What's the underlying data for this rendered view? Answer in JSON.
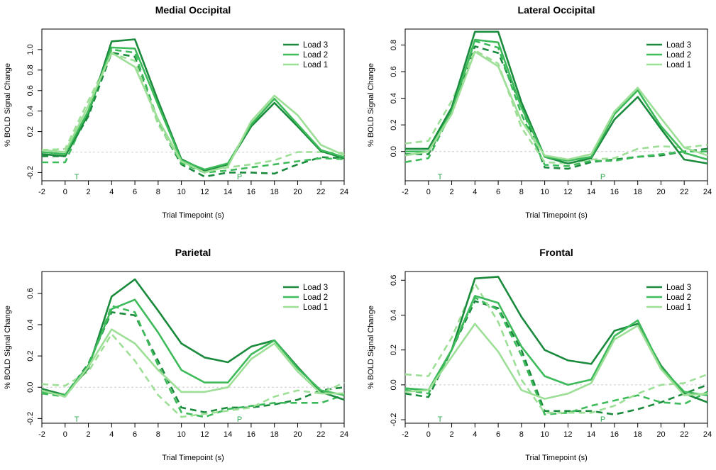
{
  "figure": {
    "background": "#ffffff"
  },
  "colors": {
    "Load 3": "#1a8a3c",
    "Load 2": "#3dba5a",
    "Load 1": "#9ddf97",
    "baseline": "#cccccc",
    "marker": "#2fa84f"
  },
  "markers": {
    "T": 1,
    "P": 15
  },
  "chart_data": [
    {
      "type": "line",
      "title": "Medial Occipital",
      "xlabel": "Trial Timepoint (s)",
      "ylabel": "% BOLD Signal Change",
      "xlim": [
        -2,
        24
      ],
      "ylim": [
        -0.28,
        1.2
      ],
      "yticks": [
        -0.2,
        0.2,
        0.4,
        0.6,
        0.8,
        1.0
      ],
      "ytick_labels": [
        "-0.2",
        "0.2",
        "0.4",
        "0.6",
        "0.8",
        "1.0"
      ],
      "xticks": [
        -2,
        0,
        2,
        4,
        6,
        8,
        10,
        12,
        14,
        16,
        18,
        20,
        22,
        24
      ],
      "x": [
        -2,
        0,
        2,
        4,
        6,
        8,
        10,
        12,
        14,
        16,
        18,
        20,
        22,
        24
      ],
      "legend_position": "top-right",
      "series": [
        {
          "name": "Load 3",
          "style": "solid",
          "values": [
            -0.02,
            -0.04,
            0.37,
            1.08,
            1.1,
            0.5,
            -0.07,
            -0.18,
            -0.12,
            0.25,
            0.48,
            0.25,
            0.01,
            -0.06
          ]
        },
        {
          "name": "Load 2",
          "style": "solid",
          "values": [
            0.0,
            -0.02,
            0.4,
            1.02,
            1.01,
            0.46,
            -0.08,
            -0.17,
            -0.11,
            0.27,
            0.52,
            0.27,
            0.02,
            -0.05
          ]
        },
        {
          "name": "Load 1",
          "style": "solid",
          "values": [
            0.02,
            0.0,
            0.45,
            0.97,
            0.83,
            0.32,
            -0.09,
            -0.2,
            -0.14,
            0.3,
            0.55,
            0.36,
            0.07,
            -0.03
          ]
        },
        {
          "name": "Load 3",
          "style": "dashed",
          "values": [
            -0.04,
            -0.04,
            0.35,
            0.97,
            0.93,
            0.28,
            -0.12,
            -0.24,
            -0.2,
            -0.2,
            -0.21,
            -0.12,
            -0.05,
            -0.06
          ]
        },
        {
          "name": "Load 2",
          "style": "dashed",
          "values": [
            -0.1,
            -0.1,
            0.4,
            1.0,
            0.97,
            0.3,
            -0.11,
            -0.2,
            -0.18,
            -0.15,
            -0.12,
            -0.09,
            -0.06,
            -0.07
          ]
        },
        {
          "name": "Load 1",
          "style": "dashed",
          "values": [
            0.02,
            0.03,
            0.5,
            0.96,
            0.89,
            0.27,
            -0.09,
            -0.18,
            -0.15,
            -0.12,
            -0.08,
            0.0,
            0.0,
            -0.01
          ]
        }
      ]
    },
    {
      "type": "line",
      "title": "Lateral Occipital",
      "xlabel": "Trial Timepoint (s)",
      "ylabel": "% BOLD Signal Change",
      "xlim": [
        -2,
        24
      ],
      "ylim": [
        -0.22,
        0.92
      ],
      "yticks": [
        0.0,
        0.2,
        0.4,
        0.6,
        0.8
      ],
      "ytick_labels": [
        "0.0",
        "0.2",
        "0.4",
        "0.6",
        "0.8"
      ],
      "xticks": [
        -2,
        0,
        2,
        4,
        6,
        8,
        10,
        12,
        14,
        16,
        18,
        20,
        22,
        24
      ],
      "x": [
        -2,
        0,
        2,
        4,
        6,
        8,
        10,
        12,
        14,
        16,
        18,
        20,
        22,
        24
      ],
      "legend_position": "top-right",
      "series": [
        {
          "name": "Load 3",
          "style": "solid",
          "values": [
            0.02,
            0.02,
            0.33,
            0.9,
            0.9,
            0.37,
            -0.04,
            -0.09,
            -0.05,
            0.24,
            0.41,
            0.17,
            -0.06,
            -0.09
          ]
        },
        {
          "name": "Load 2",
          "style": "solid",
          "values": [
            0.0,
            0.0,
            0.3,
            0.84,
            0.82,
            0.33,
            -0.04,
            -0.07,
            -0.04,
            0.28,
            0.46,
            0.19,
            -0.01,
            -0.06
          ]
        },
        {
          "name": "Load 1",
          "style": "solid",
          "values": [
            -0.03,
            0.0,
            0.28,
            0.75,
            0.64,
            0.23,
            -0.03,
            -0.06,
            -0.02,
            0.3,
            0.48,
            0.25,
            0.03,
            -0.03
          ]
        },
        {
          "name": "Load 3",
          "style": "dashed",
          "values": [
            -0.02,
            -0.02,
            0.3,
            0.79,
            0.74,
            0.34,
            -0.12,
            -0.13,
            -0.08,
            -0.06,
            -0.04,
            -0.03,
            0.0,
            0.02
          ]
        },
        {
          "name": "Load 2",
          "style": "dashed",
          "values": [
            -0.08,
            -0.05,
            0.3,
            0.83,
            0.78,
            0.28,
            -0.1,
            -0.11,
            -0.07,
            -0.07,
            -0.04,
            -0.02,
            0.0,
            0.0
          ]
        },
        {
          "name": "Load 1",
          "style": "dashed",
          "values": [
            0.06,
            0.08,
            0.38,
            0.76,
            0.66,
            0.18,
            -0.08,
            -0.09,
            -0.06,
            -0.05,
            0.02,
            0.04,
            0.03,
            0.05
          ]
        }
      ]
    },
    {
      "type": "line",
      "title": "Parietal",
      "xlabel": "Trial Timepoint (s)",
      "ylabel": "% BOLD Signal Change",
      "xlim": [
        -2,
        24
      ],
      "ylim": [
        -0.23,
        0.74
      ],
      "yticks": [
        -0.2,
        0.0,
        0.2,
        0.4,
        0.6
      ],
      "ytick_labels": [
        "-0.2",
        "0.0",
        "0.2",
        "0.4",
        "0.6"
      ],
      "xticks": [
        -2,
        0,
        2,
        4,
        6,
        8,
        10,
        12,
        14,
        16,
        18,
        20,
        22,
        24
      ],
      "x": [
        -2,
        0,
        2,
        4,
        6,
        8,
        10,
        12,
        14,
        16,
        18,
        20,
        22,
        24
      ],
      "legend_position": "top-right",
      "series": [
        {
          "name": "Load 3",
          "style": "solid",
          "values": [
            -0.01,
            -0.05,
            0.12,
            0.58,
            0.69,
            0.49,
            0.28,
            0.19,
            0.16,
            0.26,
            0.3,
            0.13,
            -0.03,
            -0.08
          ]
        },
        {
          "name": "Load 2",
          "style": "solid",
          "values": [
            -0.03,
            -0.05,
            0.14,
            0.5,
            0.56,
            0.35,
            0.11,
            0.03,
            0.03,
            0.21,
            0.3,
            0.12,
            -0.02,
            -0.05
          ]
        },
        {
          "name": "Load 1",
          "style": "solid",
          "values": [
            -0.02,
            -0.06,
            0.13,
            0.37,
            0.28,
            0.11,
            -0.03,
            -0.03,
            0.0,
            0.18,
            0.28,
            0.1,
            -0.04,
            -0.04
          ]
        },
        {
          "name": "Load 3",
          "style": "dashed",
          "values": [
            -0.01,
            -0.05,
            0.15,
            0.48,
            0.46,
            0.17,
            -0.13,
            -0.16,
            -0.13,
            -0.13,
            -0.11,
            -0.08,
            -0.02,
            0.0
          ]
        },
        {
          "name": "Load 2",
          "style": "dashed",
          "values": [
            -0.04,
            -0.06,
            0.13,
            0.52,
            0.48,
            0.14,
            -0.16,
            -0.19,
            -0.14,
            -0.12,
            -0.1,
            -0.1,
            -0.1,
            -0.05
          ]
        },
        {
          "name": "Load 1",
          "style": "dashed",
          "values": [
            0.02,
            0.01,
            0.1,
            0.34,
            0.17,
            -0.05,
            -0.19,
            -0.17,
            -0.15,
            -0.13,
            -0.06,
            -0.02,
            -0.04,
            0.03
          ]
        }
      ]
    },
    {
      "type": "line",
      "title": "Frontal",
      "xlabel": "Trial Timepoint (s)",
      "ylabel": "% BOLD Signal Change",
      "xlim": [
        -2,
        24
      ],
      "ylim": [
        -0.22,
        0.65
      ],
      "yticks": [
        -0.2,
        0.0,
        0.2,
        0.4,
        0.6
      ],
      "ytick_labels": [
        "-0.2",
        "0.0",
        "0.2",
        "0.4",
        "0.6"
      ],
      "xticks": [
        -2,
        0,
        2,
        4,
        6,
        8,
        10,
        12,
        14,
        16,
        18,
        20,
        22,
        24
      ],
      "x": [
        -2,
        0,
        2,
        4,
        6,
        8,
        10,
        12,
        14,
        16,
        18,
        20,
        22,
        24
      ],
      "legend_position": "top-right",
      "series": [
        {
          "name": "Load 3",
          "style": "solid",
          "values": [
            -0.02,
            -0.03,
            0.2,
            0.61,
            0.62,
            0.39,
            0.2,
            0.14,
            0.12,
            0.31,
            0.35,
            0.11,
            -0.05,
            -0.1
          ]
        },
        {
          "name": "Load 2",
          "style": "solid",
          "values": [
            -0.02,
            -0.03,
            0.2,
            0.51,
            0.47,
            0.22,
            0.05,
            0.0,
            0.03,
            0.28,
            0.37,
            0.1,
            -0.04,
            -0.06
          ]
        },
        {
          "name": "Load 1",
          "style": "solid",
          "values": [
            -0.04,
            -0.03,
            0.16,
            0.35,
            0.19,
            -0.03,
            -0.08,
            -0.05,
            0.01,
            0.26,
            0.34,
            0.09,
            -0.06,
            -0.05
          ]
        },
        {
          "name": "Load 3",
          "style": "dashed",
          "values": [
            -0.05,
            -0.07,
            0.2,
            0.48,
            0.44,
            0.2,
            -0.15,
            -0.15,
            -0.15,
            -0.17,
            -0.14,
            -0.1,
            -0.05,
            0.0
          ]
        },
        {
          "name": "Load 2",
          "style": "dashed",
          "values": [
            -0.03,
            -0.05,
            0.2,
            0.5,
            0.43,
            0.17,
            -0.17,
            -0.16,
            -0.12,
            -0.09,
            -0.06,
            -0.1,
            -0.11,
            -0.04
          ]
        },
        {
          "name": "Load 1",
          "style": "dashed",
          "values": [
            0.06,
            0.05,
            0.27,
            0.58,
            0.36,
            0.03,
            -0.16,
            -0.16,
            -0.16,
            -0.12,
            -0.05,
            0.0,
            0.01,
            0.06
          ]
        }
      ]
    }
  ]
}
